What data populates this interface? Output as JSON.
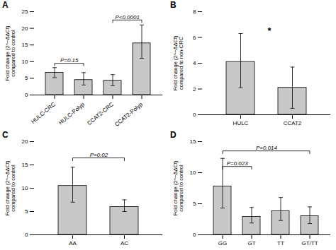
{
  "chart_data": [
    {
      "type": "bar",
      "title": "A",
      "categories": [
        "HULC-CRC",
        "HULC-Polyp",
        "CCAT2-CRC",
        "CCAT2-Polyp"
      ],
      "values": [
        6.7,
        4.5,
        4.3,
        15.5
      ],
      "error_upper": [
        1.5,
        2.2,
        1.8,
        5.5
      ],
      "error_lower": [
        1.5,
        1.5,
        1.5,
        4.5
      ],
      "ylabel": "Fold change (2^−ΔΔCt)\ncompared to control",
      "ylim": [
        0,
        25
      ],
      "yticks": [
        0,
        5,
        10,
        15,
        20,
        25
      ],
      "color": "#c8c8c8",
      "annotations": [
        {
          "x1": "HULC-CRC",
          "x2": "HULC-Polyp",
          "y": 9.5,
          "text": "P=0.15"
        },
        {
          "x1": "CCAT2-CRC",
          "x2": "CCAT2-Polyp",
          "y": 22.5,
          "text": "P<0.0001"
        }
      ]
    },
    {
      "type": "bar",
      "title": "B",
      "categories": [
        "HULC",
        "CCAT2"
      ],
      "values": [
        4.1,
        2.1
      ],
      "error_upper": [
        2.2,
        1.6
      ],
      "error_lower": [
        2.0,
        1.6
      ],
      "ylabel": "Fold change (2^−ΔΔCt)\ncompared to non-CRC",
      "ylim": [
        0,
        8
      ],
      "yticks": [
        0,
        2,
        4,
        6,
        8
      ],
      "color": "#c8c8c8",
      "annotations": [
        {
          "x": "HULC",
          "y": 6.3,
          "text": "*"
        }
      ]
    },
    {
      "type": "bar",
      "title": "C",
      "categories": [
        "AA",
        "AC"
      ],
      "values": [
        10.5,
        6.0
      ],
      "error_upper": [
        4.0,
        1.5
      ],
      "error_lower": [
        3.5,
        1.0
      ],
      "ylabel": "Fold change (2^−ΔΔCt)\ncompared to control",
      "ylim": [
        0,
        20
      ],
      "yticks": [
        0,
        5,
        10,
        15,
        20
      ],
      "color": "#c8c8c8",
      "annotations": [
        {
          "x1": "AA",
          "x2": "AC",
          "y": 16.5,
          "text": "P=0.02"
        }
      ]
    },
    {
      "type": "bar",
      "title": "D",
      "categories": [
        "GG",
        "GT",
        "TT",
        "GT/TT"
      ],
      "values": [
        7.8,
        2.9,
        3.8,
        3.0
      ],
      "error_upper": [
        4.5,
        1.5,
        2.2,
        1.5
      ],
      "error_lower": [
        3.5,
        1.0,
        1.5,
        1.2
      ],
      "ylabel": "Fold change (2^−ΔΔCt)\ncompared to control",
      "ylim": [
        0,
        15
      ],
      "yticks": [
        0,
        5,
        10,
        15
      ],
      "color": "#c8c8c8",
      "annotations": [
        {
          "x1": "GG",
          "x2": "GT",
          "y": 11.0,
          "text": "P=0.023"
        },
        {
          "x1": "GG",
          "x2": "GT/TT",
          "y": 13.5,
          "text": "P=0.014"
        }
      ]
    }
  ]
}
